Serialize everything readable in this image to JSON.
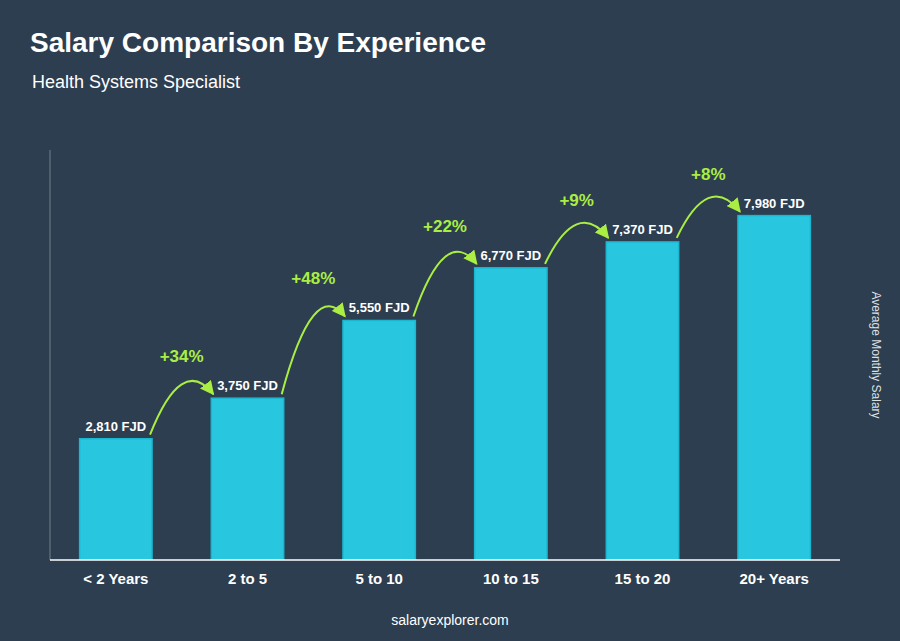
{
  "chart_data": {
    "type": "bar",
    "title": "Salary Comparison By Experience",
    "subtitle": "Health Systems Specialist",
    "ylabel": "Average Monthly Salary",
    "footer": "salaryexplorer.com",
    "categories": [
      "< 2 Years",
      "2 to 5",
      "5 to 10",
      "10 to 15",
      "15 to 20",
      "20+ Years"
    ],
    "values": [
      2810,
      3750,
      5550,
      6770,
      7370,
      7980
    ],
    "value_labels": [
      "2,810 FJD",
      "3,750 FJD",
      "5,550 FJD",
      "6,770 FJD",
      "7,370 FJD",
      "7,980 FJD"
    ],
    "data_labels": true,
    "color": "#29c6e0",
    "ylim": [
      0,
      9500
    ],
    "yticks": [],
    "tick_labels": "x",
    "grid": false,
    "annotations": [
      {
        "label": "+34%",
        "color": "#aaee44"
      },
      {
        "label": "+48%",
        "color": "#aaee44"
      },
      {
        "label": "+22%",
        "color": "#aaee44"
      },
      {
        "label": "+9%",
        "color": "#aaee44"
      },
      {
        "label": "+8%",
        "color": "#aaee44"
      }
    ]
  }
}
